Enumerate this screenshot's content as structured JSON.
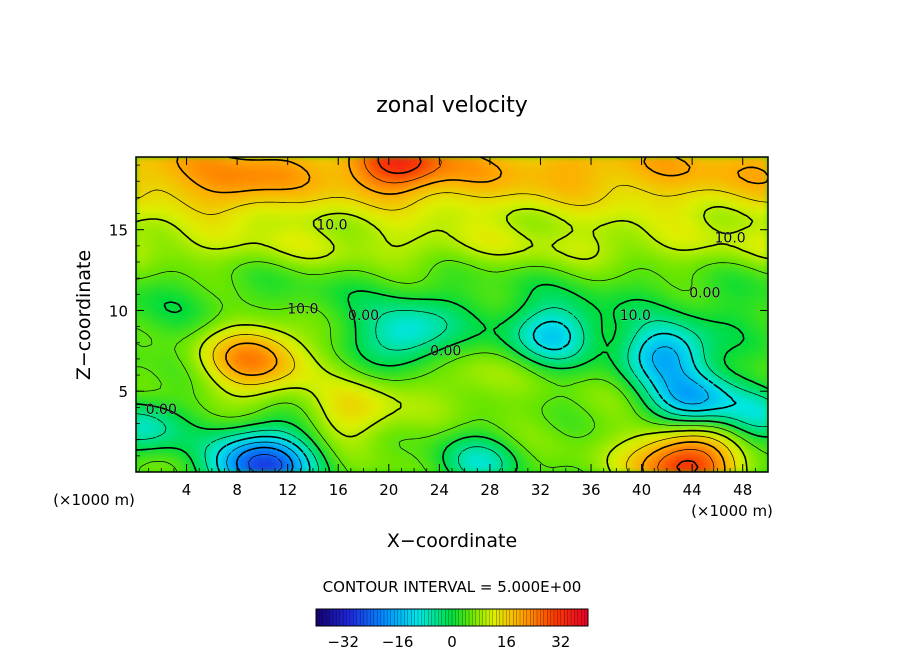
{
  "chart_data": {
    "type": "heatmap",
    "title": "zonal velocity",
    "xlabel": "X−coordinate",
    "ylabel": "Z−coordinate",
    "x_unit_left": "(×1000 m)",
    "x_unit_right": "(×1000 m)",
    "xlim": [
      0,
      50
    ],
    "ylim": [
      0,
      19.5
    ],
    "xticks": [
      4,
      8,
      12,
      16,
      20,
      24,
      28,
      32,
      36,
      40,
      44,
      48
    ],
    "xtick_labels": [
      "4",
      "8",
      "12",
      "16",
      "20",
      "24",
      "28",
      "32",
      "36",
      "40",
      "44",
      "48"
    ],
    "yticks": [
      5,
      10,
      15
    ],
    "ytick_labels": [
      "5",
      "10",
      "15"
    ],
    "contour_interval_text": "CONTOUR INTERVAL =  5.000E+00",
    "colorbar": {
      "range": [
        -40,
        40
      ],
      "ticks": [
        -32,
        -16,
        0,
        16,
        32
      ],
      "tick_labels": [
        "−32",
        "−16",
        "0",
        "16",
        "32"
      ]
    },
    "contour_labels": [
      {
        "text": "10.0",
        "x": 15.5,
        "z": 15.0
      },
      {
        "text": "10.0",
        "x": 47.0,
        "z": 14.2
      },
      {
        "text": "10.0",
        "x": 13.2,
        "z": 9.8
      },
      {
        "text": "10.0",
        "x": 39.5,
        "z": 9.4
      },
      {
        "text": "0.00",
        "x": 18.0,
        "z": 9.4
      },
      {
        "text": "0.00",
        "x": 45.0,
        "z": 10.8
      },
      {
        "text": "0.00",
        "x": 24.5,
        "z": 7.2
      },
      {
        "text": "0.00",
        "x": 2.0,
        "z": 3.6
      }
    ],
    "features": [
      {
        "kind": "max",
        "x": 9.5,
        "z": 7.2,
        "peak": 25
      },
      {
        "kind": "max",
        "x": 26.5,
        "z": 5.8,
        "peak": 10
      },
      {
        "kind": "max",
        "x": 43.5,
        "z": 0.5,
        "peak": 32
      },
      {
        "kind": "max",
        "x": 21.0,
        "z": 19.3,
        "peak": 20
      },
      {
        "kind": "max",
        "x": 8.0,
        "z": 17.5,
        "peak": 12
      },
      {
        "kind": "max",
        "x": 17.5,
        "z": 3.8,
        "peak": 15
      },
      {
        "kind": "min",
        "x": 10.0,
        "z": 0.4,
        "peak": -28
      },
      {
        "kind": "min",
        "x": 42.0,
        "z": 7.3,
        "peak": -14
      },
      {
        "kind": "min",
        "x": 44.0,
        "z": 4.5,
        "peak": -16
      },
      {
        "kind": "min",
        "x": 33.0,
        "z": 8.5,
        "peak": -9
      },
      {
        "kind": "min",
        "x": 21.5,
        "z": 8.5,
        "peak": -8
      },
      {
        "kind": "min",
        "x": 27.0,
        "z": 0.5,
        "peak": -7
      },
      {
        "kind": "min",
        "x": 0.5,
        "z": 2.8,
        "peak": -8
      },
      {
        "kind": "min",
        "x": 49.5,
        "z": 3.5,
        "peak": -6
      }
    ]
  }
}
